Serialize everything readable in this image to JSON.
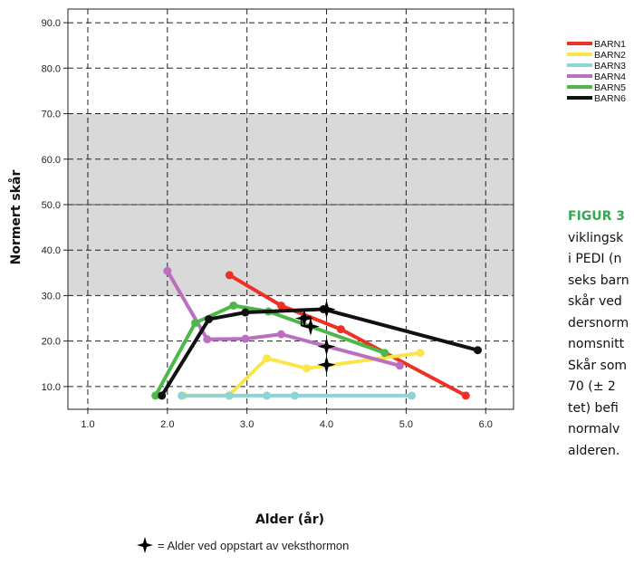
{
  "chart_data": {
    "type": "line",
    "xlabel": "Alder (år)",
    "ylabel": "Normert skår",
    "xlim": [
      0.75,
      6.35
    ],
    "ylim": [
      5.0,
      93.0
    ],
    "x_ticks": [
      "1.0",
      "2.0",
      "3.0",
      "4.0",
      "5.0",
      "6.0"
    ],
    "y_ticks": [
      "10.0",
      "20.0",
      "30.0",
      "40.0",
      "50.0",
      "60.0",
      "70.0",
      "80.0",
      "90.0"
    ],
    "shaded_band": [
      30,
      70
    ],
    "reference_line": 50,
    "grid": "dashed",
    "legend_position": "top-right",
    "series": [
      {
        "name": "BARN1",
        "color": "#ee3124",
        "x": [
          2.78,
          3.43,
          4.18,
          5.75
        ],
        "y": [
          34.5,
          27.8,
          22.6,
          8.0
        ]
      },
      {
        "name": "BARN2",
        "color": "#fae54a",
        "x": [
          2.2,
          2.77,
          3.25,
          3.75,
          5.18
        ],
        "y": [
          8.0,
          8.0,
          16.2,
          14.0,
          17.4
        ]
      },
      {
        "name": "BARN3",
        "color": "#8fd3d6",
        "x": [
          2.18,
          2.78,
          3.25,
          3.6,
          5.07
        ],
        "y": [
          8.0,
          8.0,
          8.0,
          8.0,
          8.0
        ]
      },
      {
        "name": "BARN4",
        "color": "#bd6fbf",
        "x": [
          2.0,
          2.5,
          2.98,
          3.43,
          4.92
        ],
        "y": [
          35.4,
          20.4,
          20.5,
          21.5,
          14.6
        ]
      },
      {
        "name": "BARN5",
        "color": "#4cb848",
        "x": [
          1.85,
          2.35,
          2.83,
          3.27,
          4.73
        ],
        "y": [
          8.0,
          24.0,
          27.8,
          26.5,
          17.4
        ]
      },
      {
        "name": "BARN6",
        "color": "#111111",
        "x": [
          1.93,
          2.52,
          2.98,
          3.96,
          5.9
        ],
        "y": [
          8.0,
          24.8,
          26.3,
          27.0,
          18.0
        ]
      }
    ],
    "growth_hormone_start_markers": [
      {
        "x": 3.72,
        "y": 25.0
      },
      {
        "x": 3.8,
        "y": 23.2
      },
      {
        "x": 4.0,
        "y": 27.0
      },
      {
        "x": 4.0,
        "y": 18.8
      },
      {
        "x": 4.0,
        "y": 14.8
      }
    ],
    "open_square_marker": {
      "x": 3.74,
      "y": 24.4
    }
  },
  "caption": {
    "label": "FIGUR 3",
    "lines": [
      "viklingsk",
      "i PEDI (n",
      "seks barn",
      "skår ved",
      "dersnorm",
      "nomsnitt",
      "Skår som",
      "70 (± 2",
      "tet) befi",
      "normalv",
      "alderen."
    ]
  },
  "note": {
    "text": "= Alder ved oppstart av veksthormon",
    "icon": "four-point-star-icon"
  }
}
